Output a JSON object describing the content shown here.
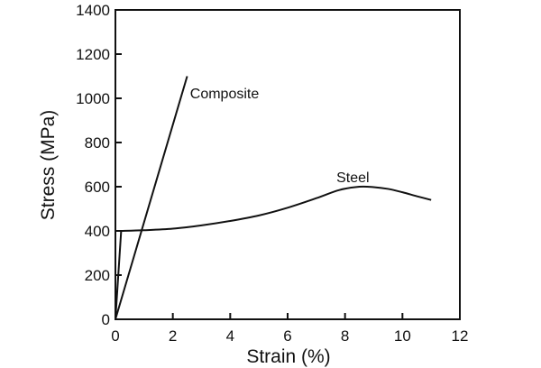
{
  "chart_data": {
    "type": "line",
    "title": "",
    "xlabel": "Strain (%)",
    "ylabel": "Stress (MPa)",
    "xlim": [
      0,
      12
    ],
    "ylim": [
      0,
      1400
    ],
    "xticks": [
      0,
      2,
      4,
      6,
      8,
      10,
      12
    ],
    "yticks": [
      0,
      200,
      400,
      600,
      800,
      1000,
      1200,
      1400
    ],
    "grid": false,
    "legend": "none",
    "series": [
      {
        "name": "Composite",
        "color": "#111111",
        "points": [
          [
            0,
            0
          ],
          [
            2.5,
            1100
          ]
        ]
      },
      {
        "name": "Steel",
        "color": "#111111",
        "points": [
          [
            0,
            0
          ],
          [
            0.2,
            400
          ],
          [
            1.0,
            403
          ],
          [
            2.0,
            410
          ],
          [
            3.0,
            425
          ],
          [
            4.0,
            445
          ],
          [
            5.0,
            470
          ],
          [
            6.0,
            505
          ],
          [
            7.0,
            548
          ],
          [
            7.8,
            585
          ],
          [
            8.5,
            600
          ],
          [
            9.0,
            598
          ],
          [
            9.5,
            590
          ],
          [
            10.0,
            575
          ],
          [
            10.5,
            557
          ],
          [
            11.0,
            540
          ]
        ]
      }
    ],
    "annotations": [
      {
        "text": "Composite",
        "x": 2.6,
        "y": 1000,
        "series": "Composite"
      },
      {
        "text": "Steel",
        "x": 7.7,
        "y": 620,
        "series": "Steel"
      }
    ]
  }
}
